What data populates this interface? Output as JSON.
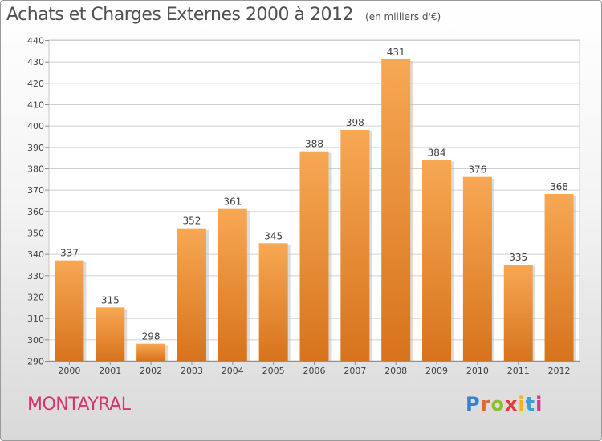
{
  "chart_data": {
    "type": "bar",
    "title": "Achats et Charges Externes 2000 à 2012",
    "unit_label": "(en milliers d'€)",
    "categories": [
      "2000",
      "2001",
      "2002",
      "2003",
      "2004",
      "2005",
      "2006",
      "2007",
      "2008",
      "2009",
      "2010",
      "2011",
      "2012"
    ],
    "values": [
      337,
      315,
      298,
      352,
      361,
      345,
      388,
      398,
      431,
      384,
      376,
      335,
      368
    ],
    "ylim": [
      290,
      440
    ],
    "yticks": [
      290,
      300,
      310,
      320,
      330,
      340,
      350,
      360,
      370,
      380,
      390,
      400,
      410,
      420,
      430,
      440
    ],
    "grid": true,
    "bar_color_top": "#f7a854",
    "bar_color_bottom": "#d7731c"
  },
  "commune": "MONTAYRAL",
  "brand": {
    "letters": [
      "P",
      "r",
      "o",
      "x",
      "i",
      "t",
      "i"
    ],
    "colors": [
      "#3a7fd0",
      "#e2682b",
      "#8cbf2f",
      "#e23a3a",
      "#f2b21f",
      "#3aa0d8",
      "#d23a8f"
    ]
  }
}
